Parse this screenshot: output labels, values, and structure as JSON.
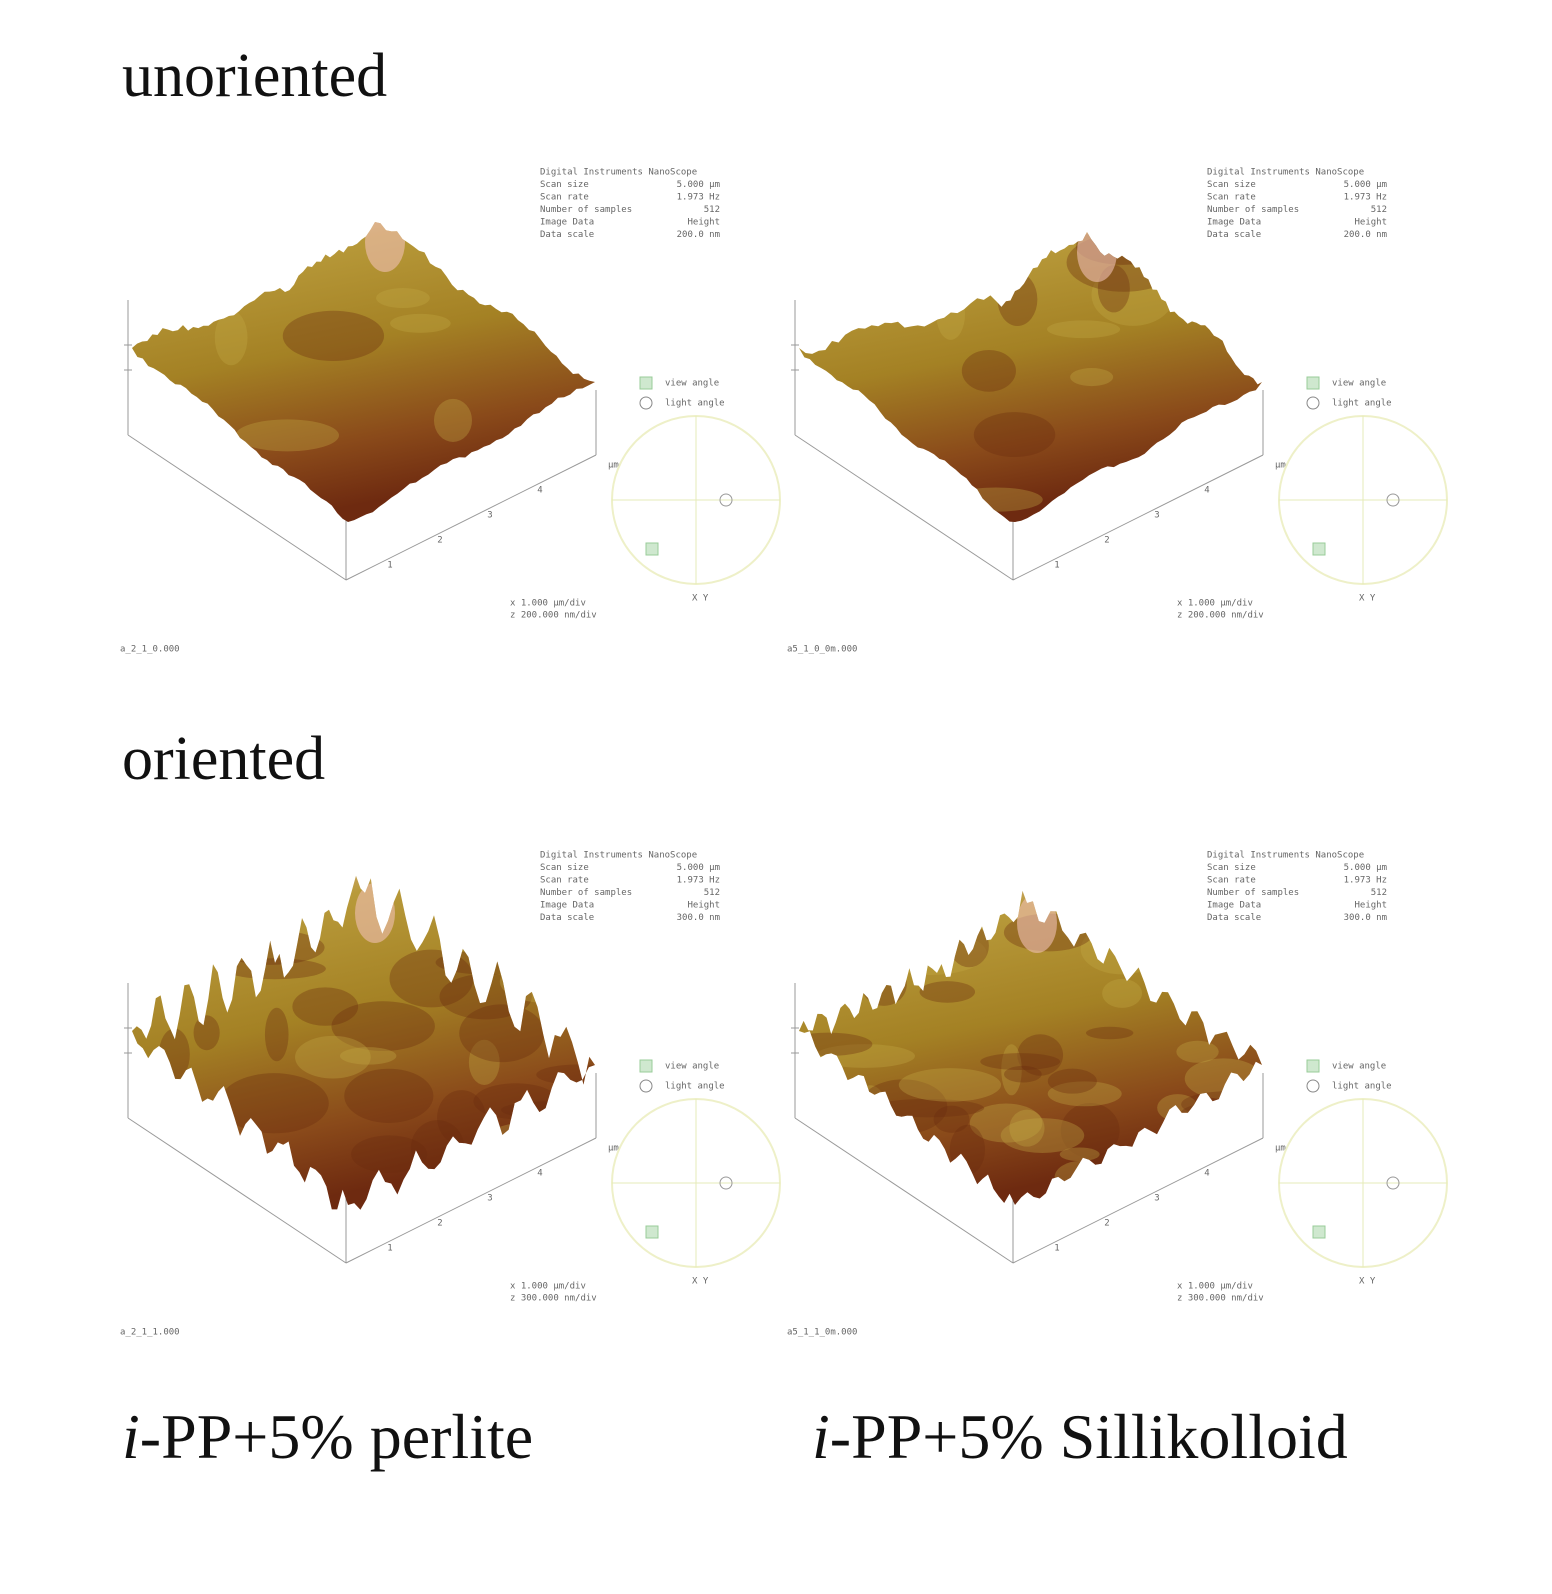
{
  "rows": [
    "unoriented",
    "oriented"
  ],
  "columns": [
    {
      "italic": "i",
      "text": "-PP+5% perlite"
    },
    {
      "italic": "i",
      "text": "-PP+5% Sillikolloid"
    }
  ],
  "panels": [
    {
      "info": [
        [
          "Digital Instruments NanoScope",
          ""
        ],
        [
          "Scan size",
          "5.000 µm"
        ],
        [
          "Scan rate",
          "1.973 Hz"
        ],
        [
          "Number of samples",
          "512"
        ],
        [
          "Image Data",
          "Height"
        ],
        [
          "Data scale",
          "200.0 nm"
        ]
      ],
      "view_angle": "view angle",
      "light_angle": "light angle",
      "scale": [
        "x 1.000 µm/div",
        "z 200.000 nm/div"
      ],
      "axis_ticks": [
        "1",
        "2",
        "3",
        "4"
      ],
      "unit": "µm",
      "xy": "X Y",
      "file": "a_2_1_0.000"
    },
    {
      "info": [
        [
          "Digital Instruments NanoScope",
          ""
        ],
        [
          "Scan size",
          "5.000 µm"
        ],
        [
          "Scan rate",
          "1.973 Hz"
        ],
        [
          "Number of samples",
          "512"
        ],
        [
          "Image Data",
          "Height"
        ],
        [
          "Data scale",
          "200.0 nm"
        ]
      ],
      "view_angle": "view angle",
      "light_angle": "light angle",
      "scale": [
        "x 1.000 µm/div",
        "z 200.000 nm/div"
      ],
      "axis_ticks": [
        "1",
        "2",
        "3",
        "4"
      ],
      "unit": "µm",
      "xy": "X Y",
      "file": "a5_1_0_0m.000"
    },
    {
      "info": [
        [
          "Digital Instruments NanoScope",
          ""
        ],
        [
          "Scan size",
          "5.000 µm"
        ],
        [
          "Scan rate",
          "1.973 Hz"
        ],
        [
          "Number of samples",
          "512"
        ],
        [
          "Image Data",
          "Height"
        ],
        [
          "Data scale",
          "300.0 nm"
        ]
      ],
      "view_angle": "view angle",
      "light_angle": "light angle",
      "scale": [
        "x 1.000 µm/div",
        "z 300.000 nm/div"
      ],
      "axis_ticks": [
        "1",
        "2",
        "3",
        "4"
      ],
      "unit": "µm",
      "xy": "X Y",
      "file": "a_2_1_1.000"
    },
    {
      "info": [
        [
          "Digital Instruments NanoScope",
          ""
        ],
        [
          "Scan size",
          "5.000 µm"
        ],
        [
          "Scan rate",
          "1.973 Hz"
        ],
        [
          "Number of samples",
          "512"
        ],
        [
          "Image Data",
          "Height"
        ],
        [
          "Data scale",
          "300.0 nm"
        ]
      ],
      "view_angle": "view angle",
      "light_angle": "light angle",
      "scale": [
        "x 1.000 µm/div",
        "z 300.000 nm/div"
      ],
      "axis_ticks": [
        "1",
        "2",
        "3",
        "4"
      ],
      "unit": "µm",
      "xy": "X Y",
      "file": "a5_1_1_0m.000"
    }
  ]
}
